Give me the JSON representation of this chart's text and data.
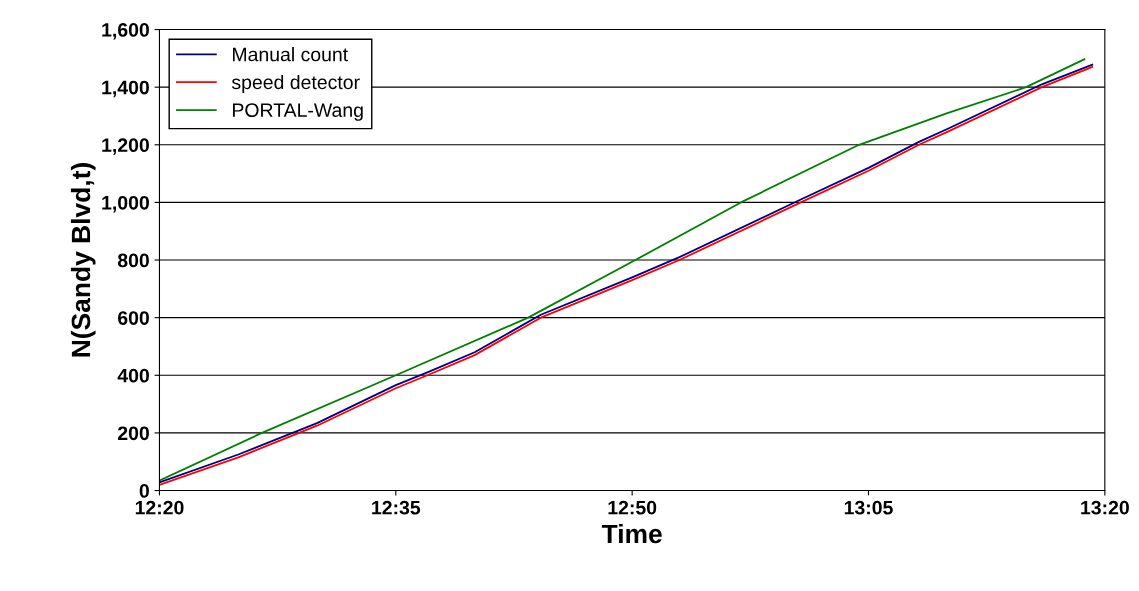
{
  "chart_data": {
    "type": "line",
    "xlabel": "Time",
    "ylabel": "N(Sandy Blvd,t)",
    "xlim": [
      12.3333,
      13.3333
    ],
    "xticks": [
      {
        "value": 12.3333,
        "label": "12:20"
      },
      {
        "value": 12.5833,
        "label": "12:35"
      },
      {
        "value": 12.8333,
        "label": "12:50"
      },
      {
        "value": 13.0833,
        "label": "13:05"
      },
      {
        "value": 13.3333,
        "label": "13:20"
      }
    ],
    "ylim": [
      0,
      1600
    ],
    "yticks": [
      0,
      {
        "value": 200,
        "label": "200"
      },
      {
        "value": 400,
        "label": "400"
      },
      {
        "value": 600,
        "label": "600"
      },
      {
        "value": 800,
        "label": "800"
      },
      {
        "value": 1000,
        "label": "1,000"
      },
      {
        "value": 1200,
        "label": "1,200"
      },
      {
        "value": 1400,
        "label": "1,400"
      },
      {
        "value": 1600,
        "label": "1,600"
      }
    ],
    "grid": "y",
    "legend": "top left",
    "series": [
      {
        "name": "Manual count",
        "color": "#000080",
        "x": [
          12.3333,
          12.4167,
          12.5,
          12.5833,
          12.6167,
          12.6667,
          12.7367,
          12.8333,
          12.8833,
          13.0117,
          13.0833,
          13.1367,
          13.1667,
          13.2667,
          13.32
        ],
        "values": [
          28,
          125,
          234,
          366,
          410,
          480,
          610,
          740,
          810,
          1010,
          1120,
          1210,
          1255,
          1410,
          1478
        ]
      },
      {
        "name": "speed detector",
        "color": "#ff0000",
        "x": [
          12.3333,
          12.4167,
          12.5,
          12.5833,
          12.6167,
          12.6667,
          12.7367,
          12.8333,
          12.8833,
          13.0117,
          13.0833,
          13.1367,
          13.1667,
          13.2667,
          13.32
        ],
        "values": [
          20,
          115,
          225,
          355,
          400,
          470,
          600,
          730,
          800,
          1000,
          1110,
          1200,
          1245,
          1400,
          1470
        ]
      },
      {
        "name": "PORTAL-Wang",
        "color": "#008000",
        "x": [
          12.3333,
          12.4417,
          12.5833,
          12.7233,
          12.8367,
          12.9483,
          13.0733,
          13.1667,
          13.25,
          13.3117
        ],
        "values": [
          35,
          200,
          400,
          600,
          800,
          1000,
          1200,
          1310,
          1400,
          1497
        ]
      }
    ]
  }
}
